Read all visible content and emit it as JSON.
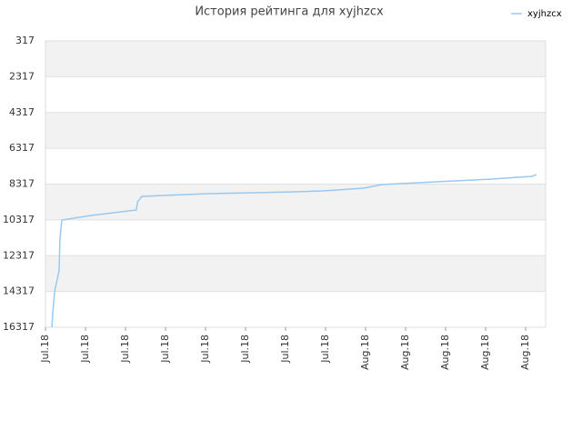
{
  "chart_data": {
    "type": "line",
    "title": "История рейтинга для xyjhzcx",
    "x": [
      0.16,
      0.18,
      0.23,
      0.34,
      0.36,
      0.39,
      0.41,
      1.14,
      2.27,
      2.3,
      2.41,
      2.95,
      4.09,
      5.23,
      6.25,
      6.93,
      7.95,
      8.41,
      9.32,
      10.23,
      11.14,
      12.16,
      12.27
    ],
    "series": [
      {
        "name": "xyjhzcx",
        "color": "#99c9f0",
        "values": [
          16317,
          15556,
          14286,
          13168,
          11492,
          10730,
          10324,
          10070,
          9765,
          9308,
          9003,
          8952,
          8851,
          8800,
          8749,
          8698,
          8546,
          8343,
          8241,
          8140,
          8038,
          7886,
          7785
        ]
      }
    ],
    "xlim": [
      0,
      12.5
    ],
    "xticks": [
      {
        "value": 0,
        "label": "Jul.18"
      },
      {
        "value": 1,
        "label": "Jul.18"
      },
      {
        "value": 2,
        "label": "Jul.18"
      },
      {
        "value": 3,
        "label": "Jul.18"
      },
      {
        "value": 4,
        "label": "Jul.18"
      },
      {
        "value": 5,
        "label": "Jul.18"
      },
      {
        "value": 6,
        "label": "Jul.18"
      },
      {
        "value": 7,
        "label": "Jul.18"
      },
      {
        "value": 8,
        "label": "Aug.18"
      },
      {
        "value": 9,
        "label": "Aug.18"
      },
      {
        "value": 10,
        "label": "Aug.18"
      },
      {
        "value": 11,
        "label": "Aug.18"
      },
      {
        "value": 12,
        "label": "Aug.18"
      }
    ],
    "ylim": [
      317,
      16317
    ],
    "y_reversed": true,
    "yticks": [
      317,
      2317,
      4317,
      6317,
      8317,
      10317,
      12317,
      14317,
      16317
    ],
    "grid": true,
    "bands": [
      "#f2f2f2",
      "#ffffff"
    ],
    "legend": "top-right"
  }
}
